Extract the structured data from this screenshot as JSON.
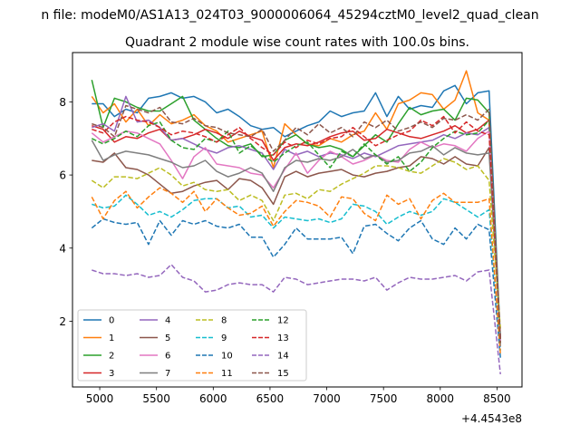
{
  "suptitle": "n file: modeM0/AS1A13_024T03_9000006064_45294cztM0_level2_quad_clean",
  "chart_data": {
    "type": "line",
    "title": "Quadrant 2 module wise count rates with 100.0s bins.",
    "xlabel": "",
    "ylabel": "",
    "offset_text": "+4.4543e8",
    "xlim": [
      4760,
      8720
    ],
    "ylim": [
      0.2,
      9.35
    ],
    "xticks": [
      5000,
      5500,
      6000,
      6500,
      7000,
      7500,
      8000,
      8500
    ],
    "yticks": [
      2,
      4,
      6,
      8
    ],
    "legend_position": "lower-left",
    "legend_ncol": 4,
    "x": [
      4930,
      5030,
      5130,
      5230,
      5330,
      5430,
      5530,
      5630,
      5730,
      5830,
      5930,
      6030,
      6130,
      6230,
      6330,
      6430,
      6530,
      6630,
      6730,
      6830,
      6930,
      7030,
      7130,
      7230,
      7330,
      7430,
      7530,
      7630,
      7730,
      7830,
      7930,
      8030,
      8130,
      8230,
      8330,
      8430,
      8530
    ],
    "series": [
      {
        "name": "0",
        "color": "#1f77b4",
        "dash": "solid",
        "values": [
          7.95,
          7.95,
          7.6,
          7.8,
          7.7,
          8.1,
          8.15,
          8.25,
          8.1,
          8.15,
          8.0,
          7.7,
          7.8,
          7.6,
          7.35,
          7.25,
          7.3,
          7.05,
          7.2,
          7.35,
          7.45,
          7.75,
          7.6,
          7.7,
          7.75,
          8.25,
          7.6,
          8.15,
          7.8,
          7.9,
          7.85,
          8.3,
          8.45,
          7.95,
          8.25,
          8.3,
          1.5
        ]
      },
      {
        "name": "1",
        "color": "#ff7f0e",
        "dash": "solid",
        "values": [
          8.15,
          7.7,
          7.95,
          7.45,
          7.8,
          7.35,
          7.65,
          7.4,
          7.5,
          7.65,
          7.35,
          7.2,
          6.9,
          7.0,
          7.1,
          7.2,
          6.2,
          7.4,
          7.1,
          6.85,
          6.8,
          7.0,
          6.9,
          7.1,
          7.2,
          7.7,
          7.25,
          7.95,
          8.05,
          8.25,
          8.2,
          7.8,
          8.05,
          8.85,
          7.7,
          7.5,
          1.3
        ]
      },
      {
        "name": "2",
        "color": "#2ca02c",
        "dash": "solid",
        "values": [
          8.6,
          7.3,
          8.1,
          8.0,
          7.85,
          7.75,
          7.75,
          7.95,
          8.15,
          7.5,
          7.25,
          7.0,
          6.8,
          6.75,
          6.85,
          6.5,
          6.55,
          6.95,
          7.1,
          6.85,
          6.75,
          6.8,
          6.7,
          6.5,
          6.8,
          7.1,
          6.9,
          7.4,
          7.85,
          7.65,
          7.75,
          7.8,
          7.5,
          8.1,
          8.05,
          7.7,
          1.5
        ]
      },
      {
        "name": "3",
        "color": "#d62728",
        "dash": "solid",
        "values": [
          7.35,
          7.25,
          6.9,
          7.05,
          7.0,
          7.15,
          7.25,
          6.95,
          7.0,
          7.1,
          7.25,
          7.15,
          7.0,
          7.2,
          7.05,
          6.95,
          6.4,
          6.75,
          6.85,
          6.8,
          6.9,
          7.05,
          7.15,
          7.2,
          6.95,
          7.0,
          7.25,
          7.15,
          7.05,
          7.0,
          7.1,
          7.2,
          7.35,
          7.15,
          7.25,
          7.5,
          1.5
        ]
      },
      {
        "name": "4",
        "color": "#9467bd",
        "dash": "solid",
        "values": [
          7.3,
          7.4,
          7.2,
          8.15,
          7.45,
          7.5,
          7.3,
          6.95,
          7.0,
          6.85,
          6.7,
          6.6,
          6.75,
          6.8,
          6.7,
          6.6,
          6.15,
          6.7,
          6.55,
          6.65,
          6.5,
          6.6,
          6.55,
          6.45,
          6.6,
          6.5,
          6.65,
          6.8,
          6.85,
          6.9,
          6.95,
          7.1,
          7.0,
          7.15,
          7.1,
          7.3,
          1.3
        ]
      },
      {
        "name": "5",
        "color": "#8c564b",
        "dash": "solid",
        "values": [
          6.4,
          6.35,
          6.6,
          6.2,
          6.15,
          6.0,
          5.75,
          5.5,
          5.55,
          5.7,
          5.8,
          5.85,
          5.6,
          5.9,
          5.85,
          5.65,
          5.2,
          5.95,
          6.1,
          5.95,
          6.05,
          6.1,
          6.15,
          6.0,
          5.95,
          6.05,
          6.1,
          6.2,
          6.25,
          6.5,
          6.45,
          6.3,
          6.5,
          6.3,
          6.25,
          6.75,
          1.5
        ]
      },
      {
        "name": "6",
        "color": "#e377c2",
        "dash": "solid",
        "values": [
          7.15,
          6.9,
          7.05,
          7.2,
          7.15,
          7.0,
          6.85,
          6.4,
          5.9,
          6.5,
          6.75,
          6.3,
          6.25,
          6.2,
          6.05,
          6.0,
          5.65,
          6.15,
          6.6,
          6.05,
          6.4,
          6.65,
          6.5,
          6.3,
          6.4,
          6.55,
          6.4,
          6.35,
          6.7,
          6.9,
          6.75,
          6.85,
          6.8,
          6.65,
          7.0,
          7.2,
          1.4
        ]
      },
      {
        "name": "7",
        "color": "#7f7f7f",
        "dash": "solid",
        "values": [
          6.95,
          6.4,
          6.55,
          6.65,
          6.6,
          6.55,
          6.45,
          6.35,
          6.2,
          6.25,
          6.4,
          6.1,
          5.95,
          6.05,
          6.2,
          6.05,
          5.55,
          6.2,
          6.4,
          6.35,
          6.45,
          6.4,
          6.5,
          6.7,
          6.45,
          6.55,
          6.35,
          6.4,
          6.6,
          6.65,
          6.8,
          6.55,
          6.75,
          6.6,
          6.55,
          6.6,
          1.6
        ]
      },
      {
        "name": "8",
        "color": "#bcbd22",
        "dash": "dashed",
        "values": [
          5.85,
          5.65,
          5.95,
          5.95,
          5.9,
          6.05,
          6.2,
          6.0,
          5.7,
          5.8,
          5.6,
          5.55,
          5.6,
          5.3,
          5.45,
          5.3,
          4.75,
          5.45,
          5.5,
          5.35,
          5.6,
          5.55,
          5.75,
          5.9,
          6.05,
          6.25,
          6.25,
          6.2,
          6.1,
          6.05,
          6.25,
          6.45,
          6.35,
          6.15,
          6.25,
          5.85,
          1.8
        ]
      },
      {
        "name": "9",
        "color": "#17becf",
        "dash": "dashed",
        "values": [
          5.2,
          5.1,
          5.15,
          5.45,
          5.2,
          4.9,
          5.0,
          4.85,
          5.05,
          5.3,
          5.35,
          5.35,
          5.1,
          5.15,
          4.85,
          4.9,
          4.55,
          4.85,
          4.8,
          4.75,
          4.8,
          4.7,
          4.8,
          5.2,
          5.15,
          5.0,
          4.65,
          4.85,
          5.0,
          4.9,
          5.0,
          5.35,
          5.25,
          5.05,
          4.85,
          5.05,
          1.2
        ]
      },
      {
        "name": "10",
        "color": "#1f77b4",
        "dash": "dashed",
        "values": [
          4.55,
          4.8,
          4.7,
          4.65,
          4.7,
          4.1,
          4.75,
          4.35,
          4.75,
          4.65,
          4.75,
          4.6,
          4.55,
          4.65,
          4.3,
          4.3,
          3.75,
          4.1,
          4.55,
          4.25,
          4.25,
          4.25,
          4.3,
          3.85,
          4.6,
          4.65,
          4.4,
          4.2,
          4.55,
          4.75,
          4.25,
          4.1,
          4.55,
          4.25,
          4.65,
          4.5,
          1.0
        ]
      },
      {
        "name": "11",
        "color": "#ff7f0e",
        "dash": "dashed",
        "values": [
          5.4,
          4.8,
          5.3,
          5.55,
          5.1,
          5.4,
          5.65,
          5.5,
          5.25,
          5.55,
          5.0,
          5.35,
          5.1,
          4.9,
          4.95,
          5.15,
          4.6,
          5.0,
          5.3,
          5.25,
          5.15,
          4.85,
          5.4,
          5.35,
          4.95,
          4.75,
          5.45,
          5.2,
          5.35,
          4.8,
          5.3,
          5.5,
          5.25,
          5.25,
          5.25,
          5.35,
          1.1
        ]
      },
      {
        "name": "12",
        "color": "#2ca02c",
        "dash": "dashed",
        "values": [
          7.0,
          6.85,
          7.0,
          7.2,
          7.05,
          7.35,
          7.45,
          6.95,
          6.75,
          6.7,
          7.0,
          6.9,
          7.2,
          6.6,
          6.8,
          6.55,
          6.35,
          6.6,
          6.8,
          6.9,
          6.55,
          6.2,
          6.65,
          6.5,
          6.85,
          6.55,
          6.3,
          6.5,
          6.1,
          6.35,
          6.75,
          7.0,
          7.2,
          7.1,
          7.15,
          7.5,
          1.4
        ]
      },
      {
        "name": "13",
        "color": "#d62728",
        "dash": "dashed",
        "values": [
          7.25,
          7.15,
          7.45,
          7.6,
          7.5,
          7.45,
          7.3,
          7.1,
          7.2,
          7.15,
          7.05,
          6.9,
          7.1,
          7.3,
          7.0,
          6.75,
          6.55,
          6.9,
          6.75,
          6.95,
          6.85,
          7.0,
          7.05,
          7.3,
          7.05,
          6.8,
          6.95,
          7.1,
          7.2,
          7.5,
          7.35,
          7.6,
          7.15,
          7.45,
          7.2,
          7.1,
          1.5
        ]
      },
      {
        "name": "14",
        "color": "#9467bd",
        "dash": "dashed",
        "values": [
          3.4,
          3.3,
          3.3,
          3.25,
          3.3,
          3.2,
          3.25,
          3.55,
          3.2,
          3.1,
          2.8,
          2.85,
          3.0,
          3.05,
          3.0,
          3.0,
          2.8,
          3.2,
          3.15,
          3.0,
          3.05,
          3.1,
          3.15,
          3.15,
          3.1,
          3.2,
          2.85,
          3.05,
          3.2,
          3.15,
          3.15,
          3.2,
          3.25,
          3.1,
          3.35,
          3.4,
          0.55
        ]
      },
      {
        "name": "15",
        "color": "#8c564b",
        "dash": "dashed",
        "values": [
          7.4,
          7.3,
          7.05,
          7.9,
          7.8,
          7.7,
          7.85,
          7.45,
          7.4,
          7.55,
          7.35,
          7.3,
          7.15,
          7.1,
          7.05,
          7.25,
          6.65,
          6.95,
          7.3,
          7.1,
          7.4,
          7.15,
          7.3,
          7.05,
          7.45,
          7.3,
          7.5,
          7.2,
          7.3,
          7.45,
          7.3,
          7.55,
          7.5,
          7.65,
          7.5,
          7.8,
          1.4
        ]
      }
    ]
  }
}
